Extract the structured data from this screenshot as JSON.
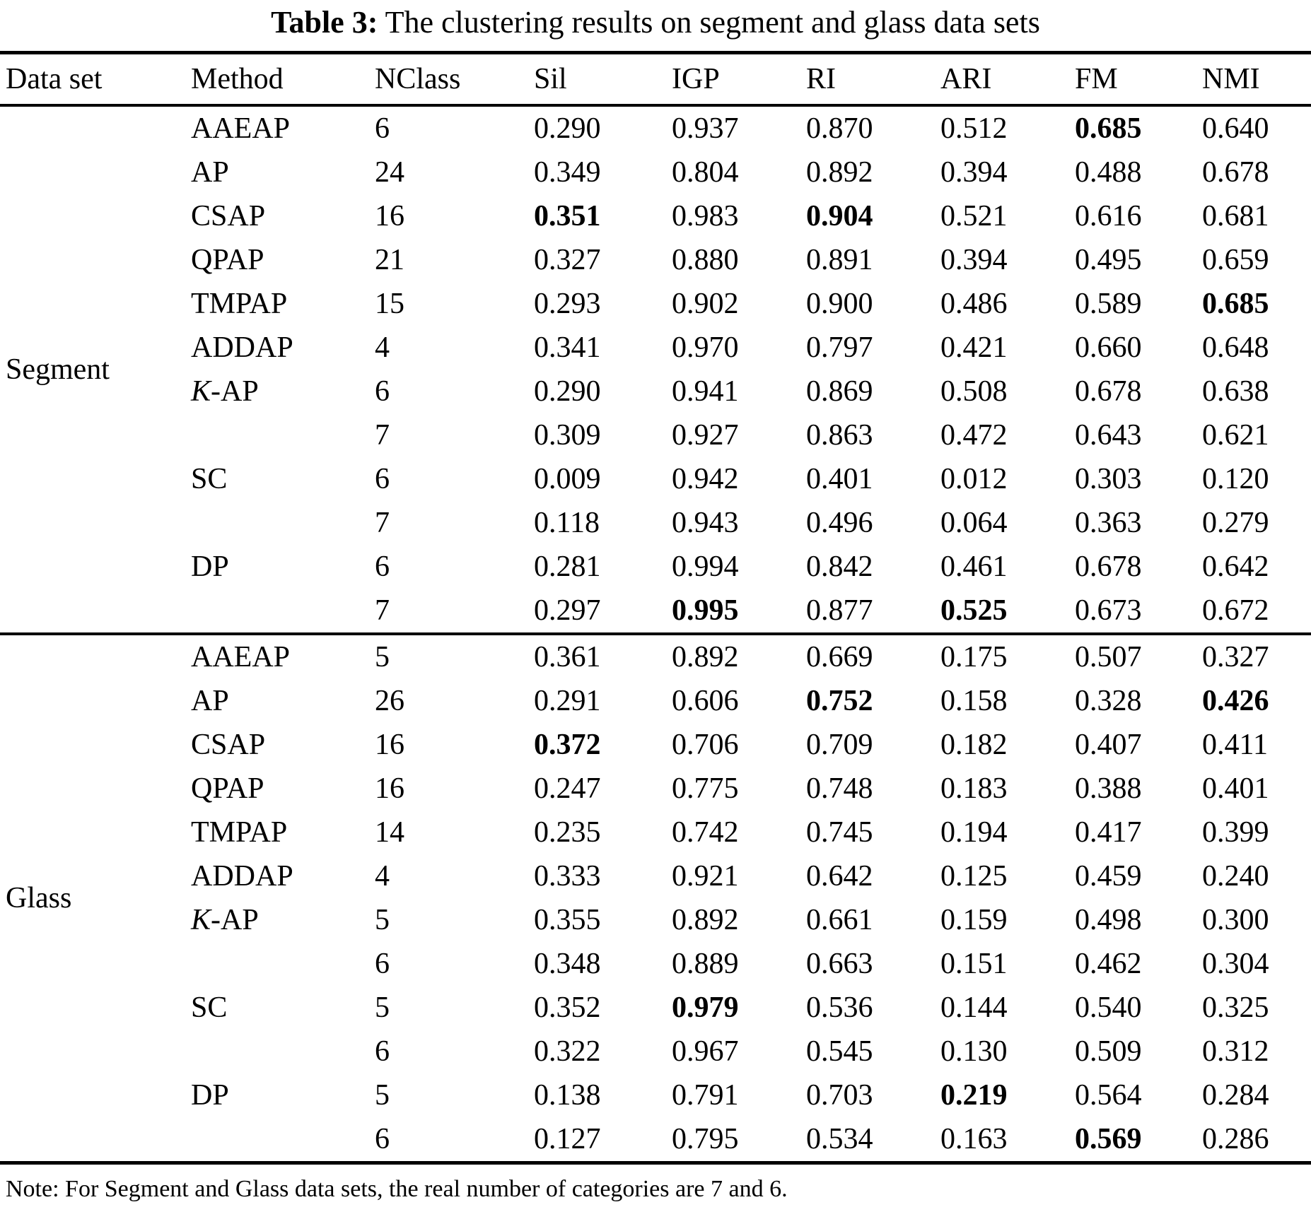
{
  "title": {
    "label": "Table 3:",
    "text": "The clustering results on segment and glass data sets"
  },
  "columns": [
    "Data set",
    "Method",
    "NClass",
    "Sil",
    "IGP",
    "RI",
    "ARI",
    "FM",
    "NMI"
  ],
  "groups": [
    {
      "dataset": "Segment",
      "rows": [
        {
          "method": "AAEAP",
          "nclass": "6",
          "sil": "0.290",
          "igp": "0.937",
          "ri": "0.870",
          "ari": "0.512",
          "fm": "0.685",
          "nmi": "0.640",
          "bold": [
            "fm"
          ]
        },
        {
          "method": "AP",
          "nclass": "24",
          "sil": "0.349",
          "igp": "0.804",
          "ri": "0.892",
          "ari": "0.394",
          "fm": "0.488",
          "nmi": "0.678",
          "bold": []
        },
        {
          "method": "CSAP",
          "nclass": "16",
          "sil": "0.351",
          "igp": "0.983",
          "ri": "0.904",
          "ari": "0.521",
          "fm": "0.616",
          "nmi": "0.681",
          "bold": [
            "sil",
            "ri"
          ]
        },
        {
          "method": "QPAP",
          "nclass": "21",
          "sil": "0.327",
          "igp": "0.880",
          "ri": "0.891",
          "ari": "0.394",
          "fm": "0.495",
          "nmi": "0.659",
          "bold": []
        },
        {
          "method": "TMPAP",
          "nclass": "15",
          "sil": "0.293",
          "igp": "0.902",
          "ri": "0.900",
          "ari": "0.486",
          "fm": "0.589",
          "nmi": "0.685",
          "bold": [
            "nmi"
          ]
        },
        {
          "method": "ADDAP",
          "nclass": "4",
          "sil": "0.341",
          "igp": "0.970",
          "ri": "0.797",
          "ari": "0.421",
          "fm": "0.660",
          "nmi": "0.648",
          "bold": []
        },
        {
          "method": "K-AP",
          "method_first_char_italic": true,
          "nclass": "6",
          "sil": "0.290",
          "igp": "0.941",
          "ri": "0.869",
          "ari": "0.508",
          "fm": "0.678",
          "nmi": "0.638",
          "bold": []
        },
        {
          "method": "",
          "nclass": "7",
          "sil": "0.309",
          "igp": "0.927",
          "ri": "0.863",
          "ari": "0.472",
          "fm": "0.643",
          "nmi": "0.621",
          "bold": []
        },
        {
          "method": "SC",
          "nclass": "6",
          "sil": "0.009",
          "igp": "0.942",
          "ri": "0.401",
          "ari": "0.012",
          "fm": "0.303",
          "nmi": "0.120",
          "bold": []
        },
        {
          "method": "",
          "nclass": "7",
          "sil": "0.118",
          "igp": "0.943",
          "ri": "0.496",
          "ari": "0.064",
          "fm": "0.363",
          "nmi": "0.279",
          "bold": []
        },
        {
          "method": "DP",
          "nclass": "6",
          "sil": "0.281",
          "igp": "0.994",
          "ri": "0.842",
          "ari": "0.461",
          "fm": "0.678",
          "nmi": "0.642",
          "bold": []
        },
        {
          "method": "",
          "nclass": "7",
          "sil": "0.297",
          "igp": "0.995",
          "ri": "0.877",
          "ari": "0.525",
          "fm": "0.673",
          "nmi": "0.672",
          "bold": [
            "igp",
            "ari"
          ]
        }
      ]
    },
    {
      "dataset": "Glass",
      "rows": [
        {
          "method": "AAEAP",
          "nclass": "5",
          "sil": "0.361",
          "igp": "0.892",
          "ri": "0.669",
          "ari": "0.175",
          "fm": "0.507",
          "nmi": "0.327",
          "bold": []
        },
        {
          "method": "AP",
          "nclass": "26",
          "sil": "0.291",
          "igp": "0.606",
          "ri": "0.752",
          "ari": "0.158",
          "fm": "0.328",
          "nmi": "0.426",
          "bold": [
            "ri",
            "nmi"
          ]
        },
        {
          "method": "CSAP",
          "nclass": "16",
          "sil": "0.372",
          "igp": "0.706",
          "ri": "0.709",
          "ari": "0.182",
          "fm": "0.407",
          "nmi": "0.411",
          "bold": [
            "sil"
          ]
        },
        {
          "method": "QPAP",
          "nclass": "16",
          "sil": "0.247",
          "igp": "0.775",
          "ri": "0.748",
          "ari": "0.183",
          "fm": "0.388",
          "nmi": "0.401",
          "bold": []
        },
        {
          "method": "TMPAP",
          "nclass": "14",
          "sil": "0.235",
          "igp": "0.742",
          "ri": "0.745",
          "ari": "0.194",
          "fm": "0.417",
          "nmi": "0.399",
          "bold": []
        },
        {
          "method": "ADDAP",
          "nclass": "4",
          "sil": "0.333",
          "igp": "0.921",
          "ri": "0.642",
          "ari": "0.125",
          "fm": "0.459",
          "nmi": "0.240",
          "bold": []
        },
        {
          "method": "K-AP",
          "method_first_char_italic": true,
          "nclass": "5",
          "sil": "0.355",
          "igp": "0.892",
          "ri": "0.661",
          "ari": "0.159",
          "fm": "0.498",
          "nmi": "0.300",
          "bold": []
        },
        {
          "method": "",
          "nclass": "6",
          "sil": "0.348",
          "igp": "0.889",
          "ri": "0.663",
          "ari": "0.151",
          "fm": "0.462",
          "nmi": "0.304",
          "bold": []
        },
        {
          "method": "SC",
          "nclass": "5",
          "sil": "0.352",
          "igp": "0.979",
          "ri": "0.536",
          "ari": "0.144",
          "fm": "0.540",
          "nmi": "0.325",
          "bold": [
            "igp"
          ]
        },
        {
          "method": "",
          "nclass": "6",
          "sil": "0.322",
          "igp": "0.967",
          "ri": "0.545",
          "ari": "0.130",
          "fm": "0.509",
          "nmi": "0.312",
          "bold": []
        },
        {
          "method": "DP",
          "nclass": "5",
          "sil": "0.138",
          "igp": "0.791",
          "ri": "0.703",
          "ari": "0.219",
          "fm": "0.564",
          "nmi": "0.284",
          "bold": [
            "ari"
          ]
        },
        {
          "method": "",
          "nclass": "6",
          "sil": "0.127",
          "igp": "0.795",
          "ri": "0.534",
          "ari": "0.163",
          "fm": "0.569",
          "nmi": "0.286",
          "bold": [
            "fm"
          ]
        }
      ]
    }
  ],
  "note": "Note: For Segment and Glass data sets, the real number of categories are 7 and 6."
}
